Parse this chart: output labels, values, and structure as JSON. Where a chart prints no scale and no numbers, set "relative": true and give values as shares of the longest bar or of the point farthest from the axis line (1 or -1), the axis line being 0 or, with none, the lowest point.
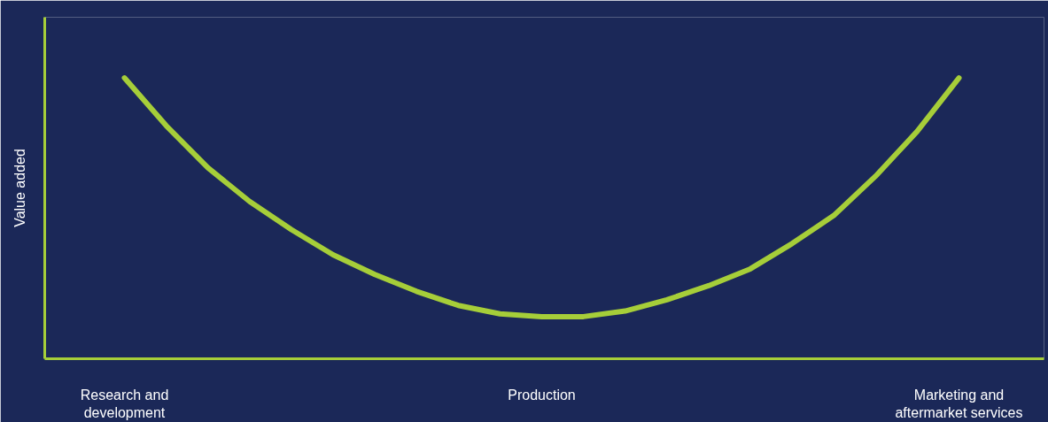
{
  "chart_data": {
    "type": "line",
    "ylabel": "Value added",
    "relative": true,
    "grid": false,
    "marker": "none",
    "line_style": "solid",
    "categories": [
      "Research and development",
      null,
      null,
      null,
      null,
      null,
      null,
      null,
      null,
      null,
      "Production",
      null,
      null,
      null,
      null,
      null,
      null,
      null,
      null,
      null,
      "Marketing and aftermarket services"
    ],
    "series": [
      {
        "color": "#a6ce39",
        "values": [
          1.0,
          0.83,
          0.68,
          0.56,
          0.46,
          0.37,
          0.3,
          0.24,
          0.19,
          0.16,
          0.15,
          0.15,
          0.17,
          0.21,
          0.26,
          0.32,
          0.41,
          0.51,
          0.65,
          0.81,
          1.0
        ]
      }
    ]
  }
}
